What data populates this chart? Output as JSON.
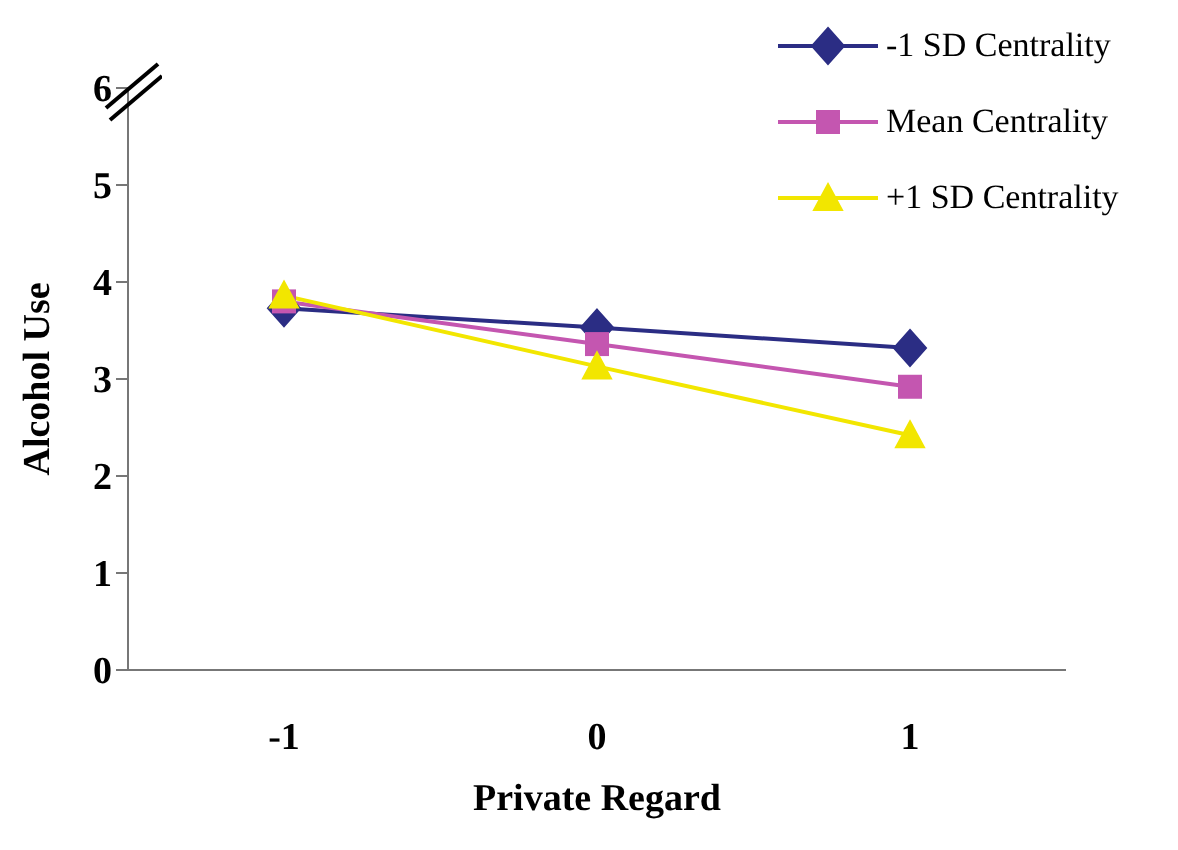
{
  "chart_data": {
    "type": "line",
    "xlabel": "Private Regard",
    "ylabel": "Alcohol Use",
    "categories": [
      "-1",
      "0",
      "1"
    ],
    "ylim": [
      0,
      6
    ],
    "yticks": [
      0,
      1,
      2,
      3,
      4,
      5,
      6
    ],
    "grid": false,
    "legend": "top right",
    "series": [
      {
        "name": "-1 SD Centrality",
        "color": "#2b2d84",
        "marker": "diamond",
        "values": [
          3.73,
          3.53,
          3.32
        ]
      },
      {
        "name": "Mean Centrality",
        "color": "#c456b0",
        "marker": "square",
        "values": [
          3.8,
          3.36,
          2.92
        ]
      },
      {
        "name": "+1 SD Centrality",
        "color": "#f2e600",
        "marker": "triangle",
        "values": [
          3.86,
          3.13,
          2.42
        ]
      }
    ]
  }
}
